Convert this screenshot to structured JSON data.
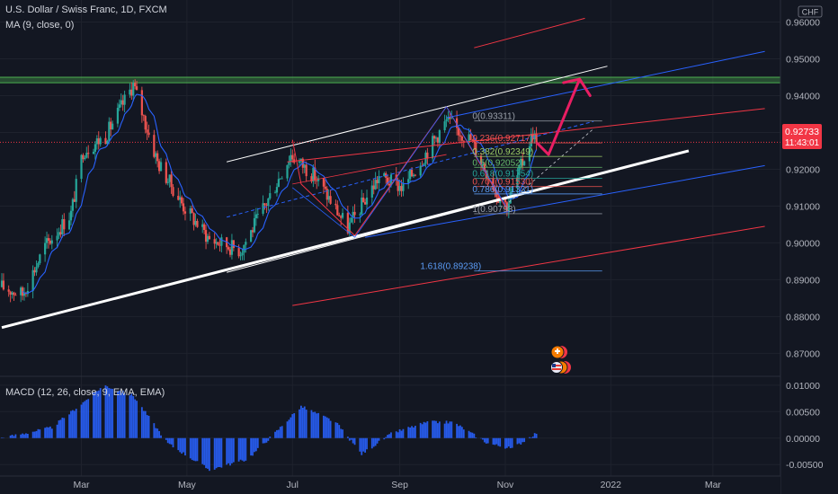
{
  "header": {
    "symbol_line": "U.S. Dollar / Swiss Franc, 1D, FXCM",
    "ma_line": "MA (9, close, 0)",
    "macd_line": "MACD (12, 26, close, 9, EMA, EMA)"
  },
  "price_axis": {
    "currency": "CHF",
    "ticks": [
      "0.96000",
      "0.95000",
      "0.94000",
      "0.93000",
      "0.92000",
      "0.91000",
      "0.90000",
      "0.89000",
      "0.88000",
      "0.87000"
    ],
    "current_price": "0.92733",
    "countdown": "11:43:01"
  },
  "macd_axis": {
    "ticks": [
      "0.01000",
      "0.00500",
      "0.00000",
      "-0.00500"
    ]
  },
  "time_axis": {
    "ticks": [
      "Mar",
      "May",
      "Jul",
      "Sep",
      "Nov",
      "2022",
      "Mar"
    ]
  },
  "fib_levels": [
    {
      "label": "0(0.93311)",
      "value": 0.93311,
      "color": "#9aa0aa"
    },
    {
      "label": "0.236(0.92717)",
      "value": 0.92717,
      "color": "#ef5350"
    },
    {
      "label": "0.382(0.92349)",
      "value": 0.92349,
      "color": "#9ccc65"
    },
    {
      "label": "0.5(0.92052)",
      "value": 0.92052,
      "color": "#66bb6a"
    },
    {
      "label": "0.618(0.91754)",
      "value": 0.91754,
      "color": "#26a69a"
    },
    {
      "label": "0.707(0.91530)",
      "value": 0.9153,
      "color": "#ef5350"
    },
    {
      "label": "0.786(0.91331)",
      "value": 0.91331,
      "color": "#5b9cf6"
    },
    {
      "label": "1(0.90793)",
      "value": 0.90793,
      "color": "#9aa0aa"
    },
    {
      "label": "1.618(0.89238)",
      "value": 0.89238,
      "color": "#5b9cf6"
    }
  ],
  "resistance_zone": {
    "from": 0.9435,
    "to": 0.945,
    "color": "#4caf50"
  },
  "chart_data": {
    "type": "candlestick",
    "symbol": "USDCHF",
    "timeframe": "1D",
    "ylim": [
      0.864,
      0.965
    ],
    "x_start": "2021-01-14",
    "approx_close_path": [
      {
        "date": "2021-01-14",
        "close": 0.888
      },
      {
        "date": "2021-01-26",
        "close": 0.886
      },
      {
        "date": "2021-02-08",
        "close": 0.899
      },
      {
        "date": "2021-02-23",
        "close": 0.908
      },
      {
        "date": "2021-03-02",
        "close": 0.925
      },
      {
        "date": "2021-03-15",
        "close": 0.929
      },
      {
        "date": "2021-03-31",
        "close": 0.943
      },
      {
        "date": "2021-04-14",
        "close": 0.922
      },
      {
        "date": "2021-04-29",
        "close": 0.91
      },
      {
        "date": "2021-05-14",
        "close": 0.901
      },
      {
        "date": "2021-06-01",
        "close": 0.898
      },
      {
        "date": "2021-06-15",
        "close": 0.91
      },
      {
        "date": "2021-06-30",
        "close": 0.924
      },
      {
        "date": "2021-07-14",
        "close": 0.918
      },
      {
        "date": "2021-08-02",
        "close": 0.904
      },
      {
        "date": "2021-08-20",
        "close": 0.918
      },
      {
        "date": "2021-09-03",
        "close": 0.915
      },
      {
        "date": "2021-09-28",
        "close": 0.933
      },
      {
        "date": "2021-10-12",
        "close": 0.928
      },
      {
        "date": "2021-10-28",
        "close": 0.913
      },
      {
        "date": "2021-11-02",
        "close": 0.91
      },
      {
        "date": "2021-11-17",
        "close": 0.93
      },
      {
        "date": "2021-11-19",
        "close": 0.9273
      }
    ],
    "ma_period": 9,
    "macd": {
      "ylim": [
        -0.007,
        0.0115
      ],
      "approx_histogram_path": [
        {
          "date": "2021-01-14",
          "value": 0.0
        },
        {
          "date": "2021-02-12",
          "value": 0.002
        },
        {
          "date": "2021-03-03",
          "value": 0.007
        },
        {
          "date": "2021-03-14",
          "value": 0.01
        },
        {
          "date": "2021-03-31",
          "value": 0.008
        },
        {
          "date": "2021-04-20",
          "value": -0.001
        },
        {
          "date": "2021-05-14",
          "value": -0.006
        },
        {
          "date": "2021-06-05",
          "value": -0.004
        },
        {
          "date": "2021-06-21",
          "value": 0.001
        },
        {
          "date": "2021-07-06",
          "value": 0.006
        },
        {
          "date": "2021-07-26",
          "value": 0.003
        },
        {
          "date": "2021-08-10",
          "value": -0.003
        },
        {
          "date": "2021-08-28",
          "value": 0.001
        },
        {
          "date": "2021-09-17",
          "value": 0.003
        },
        {
          "date": "2021-10-02",
          "value": 0.003
        },
        {
          "date": "2021-10-22",
          "value": -0.001
        },
        {
          "date": "2021-11-05",
          "value": -0.002
        },
        {
          "date": "2021-11-19",
          "value": 0.001
        }
      ]
    },
    "projection": [
      {
        "date": "2021-11-19",
        "price": 0.9273
      },
      {
        "date": "2021-11-26",
        "price": 0.924
      },
      {
        "date": "2021-12-14",
        "price": 0.9445
      },
      {
        "date": "2021-12-20",
        "price": 0.94
      }
    ]
  },
  "colors": {
    "up": "#26a69a",
    "down": "#ef5350",
    "ma": "#2962ff",
    "bg": "#131722",
    "grid": "#1e222d",
    "white": "#ffffff",
    "channel_blue": "#2962ff",
    "channel_red": "#f23645",
    "arrow": "#e91e63"
  }
}
